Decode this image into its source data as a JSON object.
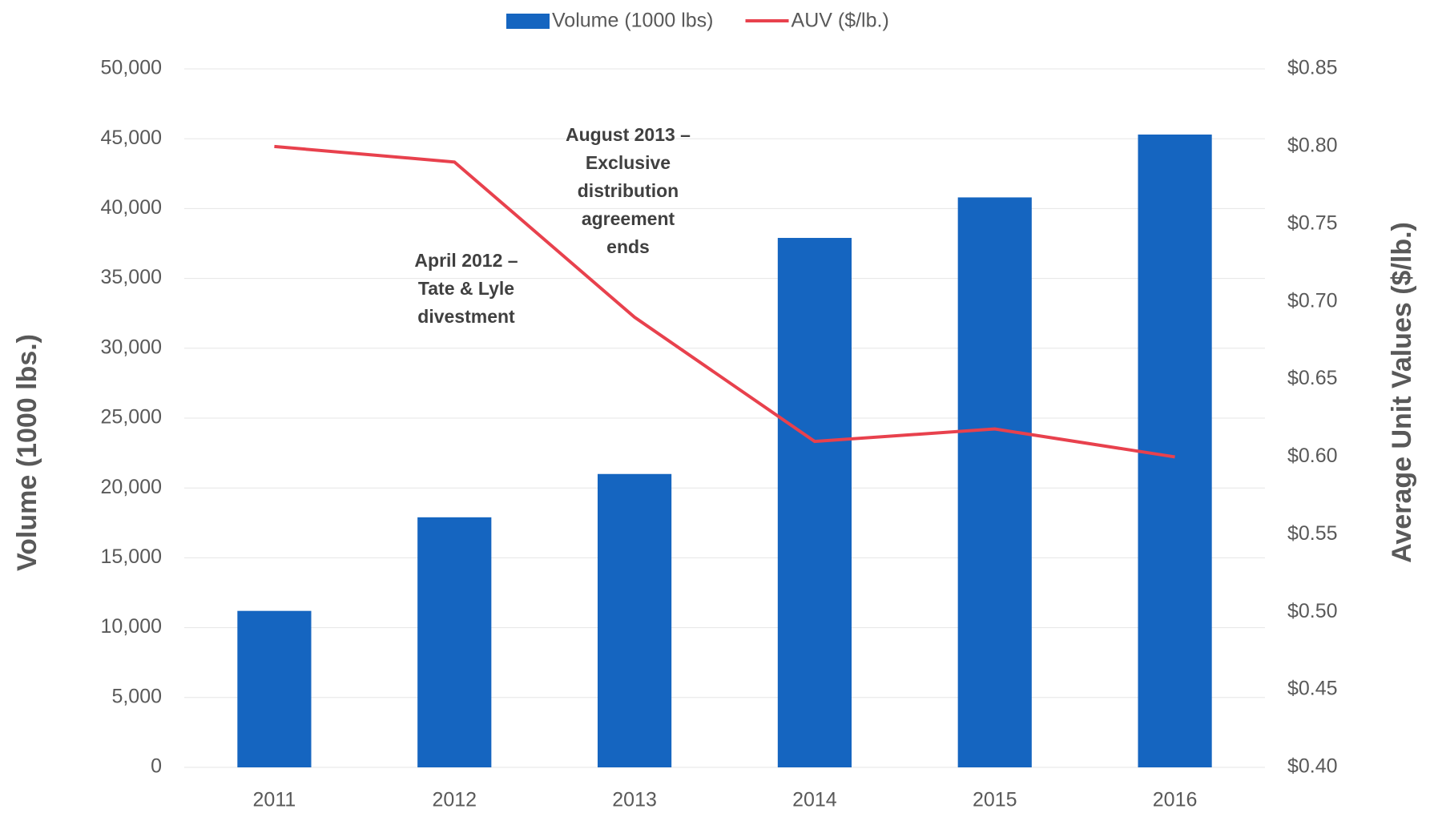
{
  "chart_data": {
    "type": "bar_line",
    "categories": [
      "2011",
      "2012",
      "2013",
      "2014",
      "2015",
      "2016"
    ],
    "series": [
      {
        "name": "Volume (1000 lbs)",
        "type": "bar",
        "color": "#1565c0",
        "values": [
          11200,
          17900,
          21000,
          37900,
          40800,
          45300
        ]
      },
      {
        "name": "AUV ($/lb.)",
        "type": "line",
        "axis": "y2",
        "color": "#e8414d",
        "values": [
          0.8,
          0.79,
          0.69,
          0.61,
          0.618,
          0.6
        ]
      }
    ],
    "ylabel": "Volume (1000 lbs.)",
    "y2label": "Average Unit Values ($/lb.)",
    "ylim": [
      0,
      50000
    ],
    "yticks": [
      0,
      {
        "value": 5000,
        "label": "5,000"
      },
      {
        "value": 10000,
        "label": "10,000"
      },
      {
        "value": 15000,
        "label": "15,000"
      },
      {
        "value": 20000,
        "label": "20,000"
      },
      {
        "value": 25000,
        "label": "25,000"
      },
      {
        "value": 30000,
        "label": "30,000"
      },
      {
        "value": 35000,
        "label": "35,000"
      },
      {
        "value": 40000,
        "label": "40,000"
      },
      {
        "value": 45000,
        "label": "45,000"
      },
      {
        "value": 50000,
        "label": "50,000"
      }
    ],
    "y2lim": [
      0.4,
      0.85
    ],
    "y2ticks": [
      {
        "value": 0.4,
        "label": "$0.40"
      },
      {
        "value": 0.45,
        "label": "$0.45"
      },
      {
        "value": 0.5,
        "label": "$0.50"
      },
      {
        "value": 0.55,
        "label": "$0.55"
      },
      {
        "value": 0.6,
        "label": "$0.60"
      },
      {
        "value": 0.65,
        "label": "$0.65"
      },
      {
        "value": 0.7,
        "label": "$0.70"
      },
      {
        "value": 0.75,
        "label": "$0.75"
      },
      {
        "value": 0.8,
        "label": "$0.80"
      },
      {
        "value": 0.85,
        "label": "$0.85"
      }
    ],
    "grid": true,
    "legend": "top",
    "annotations": [
      {
        "lines": [
          "April 2012 –",
          "Tate & Lyle",
          "divestment"
        ]
      },
      {
        "lines": [
          "August 2013 –",
          "Exclusive",
          "distribution",
          "agreement",
          "ends"
        ]
      }
    ]
  }
}
